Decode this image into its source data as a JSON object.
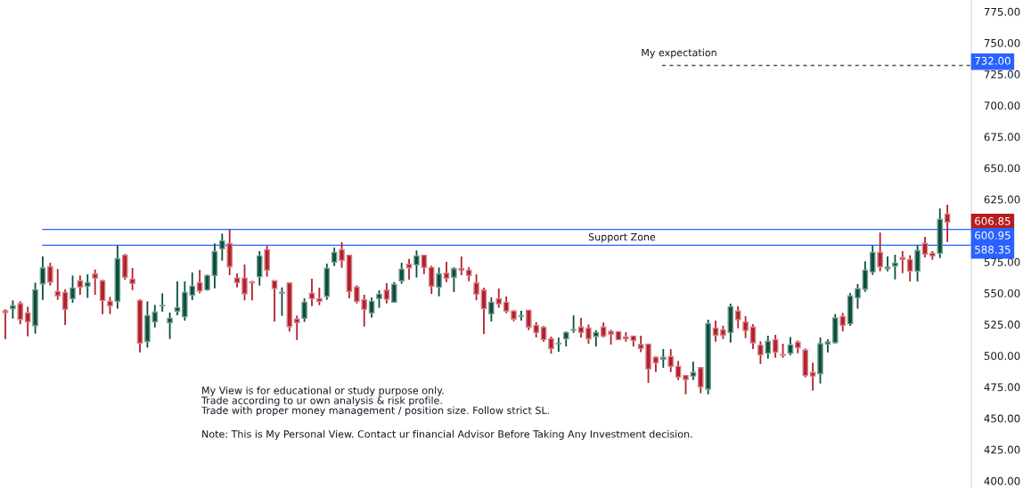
{
  "chart_data": {
    "type": "candlestick",
    "categories": [
      null,
      null,
      null,
      null,
      null,
      null,
      null,
      null,
      null,
      null,
      null,
      null,
      null,
      null,
      null,
      null,
      null,
      null,
      null,
      null,
      null,
      null,
      null,
      null,
      null,
      null,
      null,
      null,
      null,
      null,
      null,
      null,
      null,
      null,
      null,
      null,
      null,
      null,
      null,
      null,
      null,
      null,
      null,
      null,
      null,
      null,
      null,
      null,
      null,
      null,
      null,
      null,
      null,
      null,
      null,
      null,
      null,
      null,
      null,
      null,
      null,
      null,
      null,
      null,
      null,
      null,
      null,
      null,
      null,
      null,
      null,
      null,
      null,
      null,
      null,
      null,
      null,
      null,
      null,
      null,
      null,
      null,
      null,
      null,
      null,
      null,
      null,
      null,
      null,
      null,
      null,
      null,
      null,
      null,
      null,
      null,
      null,
      null,
      null,
      null,
      null,
      null,
      null,
      null,
      null,
      null,
      null,
      null,
      null,
      null,
      null,
      null,
      null,
      null,
      null,
      null,
      null,
      null,
      null,
      null,
      null,
      null,
      null,
      null,
      null,
      null,
      null
    ],
    "ohlc": [
      [
        535.9,
        537.1,
        513.4,
        534.5
      ],
      [
        537.6,
        544.2,
        529.7,
        539.9
      ],
      [
        541.6,
        543.5,
        525.2,
        529.0
      ],
      [
        534.2,
        539.2,
        515.5,
        527.1
      ],
      [
        524.0,
        558.4,
        517.6,
        552.7
      ],
      [
        557.5,
        579.3,
        544.7,
        570.1
      ],
      [
        571.2,
        574.3,
        556.1,
        558.9
      ],
      [
        551.3,
        569.3,
        544.7,
        547.8
      ],
      [
        550.6,
        553.0,
        524.5,
        537.1
      ],
      [
        545.6,
        564.1,
        542.3,
        554.2
      ],
      [
        559.9,
        564.1,
        548.7,
        554.9
      ],
      [
        555.6,
        565.1,
        546.3,
        558.4
      ],
      [
        565.5,
        568.9,
        548.7,
        562.0
      ],
      [
        559.9,
        560.8,
        533.3,
        544.2
      ],
      [
        543.5,
        547.0,
        533.3,
        539.9
      ],
      [
        543.5,
        588.1,
        537.6,
        577.6
      ],
      [
        580.3,
        581.4,
        560.6,
        562.7
      ],
      [
        561.3,
        570.1,
        552.5,
        557.7
      ],
      [
        544.2,
        545.2,
        502.7,
        510.0
      ],
      [
        511.4,
        543.5,
        506.5,
        532.1
      ],
      [
        527.1,
        540.6,
        522.6,
        534.9
      ],
      [
        539.9,
        549.9,
        535.2,
        540.2
      ],
      [
        526.4,
        534.5,
        513.4,
        530.0
      ],
      [
        535.6,
        559.4,
        532.3,
        538.5
      ],
      [
        531.2,
        559.4,
        528.1,
        550.6
      ],
      [
        548.5,
        566.5,
        544.4,
        555.6
      ],
      [
        558.4,
        568.6,
        549.9,
        551.8
      ],
      [
        552.7,
        564.8,
        552.0,
        564.1
      ],
      [
        564.1,
        589.7,
        553.9,
        583.3
      ],
      [
        585.5,
        597.6,
        576.0,
        591.9
      ],
      [
        589.7,
        601.1,
        564.4,
        571.2
      ],
      [
        562.2,
        565.8,
        554.6,
        558.4
      ],
      [
        562.2,
        572.9,
        544.2,
        549.4
      ],
      [
        559.1,
        559.9,
        544.2,
        558.2
      ],
      [
        563.2,
        583.6,
        556.1,
        579.8
      ],
      [
        584.8,
        587.8,
        563.2,
        568.4
      ],
      [
        559.9,
        560.1,
        527.3,
        553.7
      ],
      [
        550.0,
        554.6,
        531.9,
        550.6
      ],
      [
        558.2,
        558.4,
        519.3,
        523.3
      ],
      [
        529.3,
        532.1,
        512.6,
        526.4
      ],
      [
        530.0,
        545.9,
        527.1,
        542.8
      ],
      [
        549.9,
        561.5,
        539.7,
        545.6
      ],
      [
        545.6,
        554.4,
        540.4,
        543.5
      ],
      [
        547.5,
        573.6,
        544.7,
        569.8
      ],
      [
        574.8,
        586.4,
        571.7,
        582.6
      ],
      [
        584.8,
        590.7,
        570.3,
        576.2
      ],
      [
        580.3,
        580.7,
        545.9,
        551.3
      ],
      [
        554.9,
        556.3,
        541.8,
        543.5
      ],
      [
        544.7,
        548.7,
        523.3,
        537.1
      ],
      [
        534.2,
        546.6,
        530.5,
        543.5
      ],
      [
        545.6,
        552.3,
        538.3,
        549.2
      ],
      [
        552.5,
        558.0,
        541.8,
        545.2
      ],
      [
        542.8,
        558.9,
        542.8,
        557.0
      ],
      [
        559.9,
        574.3,
        557.5,
        569.1
      ],
      [
        573.1,
        577.4,
        560.6,
        570.3
      ],
      [
        572.7,
        584.1,
        562.5,
        579.8
      ],
      [
        580.3,
        580.7,
        565.3,
        570.5
      ],
      [
        570.5,
        571.9,
        549.4,
        555.6
      ],
      [
        554.9,
        570.5,
        547.5,
        565.5
      ],
      [
        566.0,
        575.0,
        558.9,
        562.0
      ],
      [
        562.7,
        570.8,
        550.9,
        569.6
      ],
      [
        569.8,
        579.3,
        564.4,
        568.4
      ],
      [
        568.4,
        570.8,
        559.6,
        564.1
      ],
      [
        558.2,
        565.1,
        544.4,
        549.2
      ],
      [
        552.5,
        554.4,
        517.4,
        537.6
      ],
      [
        533.5,
        546.6,
        527.4,
        542.8
      ],
      [
        545.6,
        553.7,
        538.3,
        541.4
      ],
      [
        542.8,
        547.5,
        534.0,
        535.7
      ],
      [
        535.7,
        536.4,
        527.6,
        529.3
      ],
      [
        531.6,
        535.9,
        528.1,
        531.9
      ],
      [
        536.4,
        536.4,
        520.5,
        522.9
      ],
      [
        524.3,
        526.9,
        514.6,
        518.6
      ],
      [
        522.8,
        523.8,
        511.2,
        512.9
      ],
      [
        513.6,
        515.3,
        501.7,
        505.8
      ],
      [
        509.5,
        514.5,
        503.2,
        509.9
      ],
      [
        513.6,
        519.5,
        507.4,
        518.6
      ],
      [
        520.5,
        532.3,
        518.3,
        520.9
      ],
      [
        522.9,
        530.2,
        514.6,
        518.6
      ],
      [
        522.1,
        525.0,
        509.6,
        513.6
      ],
      [
        515.5,
        520.5,
        507.4,
        518.6
      ],
      [
        522.9,
        526.6,
        514.6,
        515.7
      ],
      [
        519.5,
        520.7,
        508.9,
        517.2
      ],
      [
        519.3,
        519.3,
        512.9,
        512.9
      ],
      [
        515.0,
        518.8,
        511.2,
        513.6
      ],
      [
        515.7,
        515.7,
        507.4,
        512.2
      ],
      [
        509.1,
        516.0,
        502.9,
        505.8
      ],
      [
        509.3,
        509.3,
        478.3,
        489.4
      ],
      [
        498.7,
        499.6,
        487.0,
        494.4
      ],
      [
        497.2,
        505.3,
        490.3,
        498.7
      ],
      [
        499.4,
        505.3,
        487.0,
        491.5
      ],
      [
        491.5,
        495.8,
        480.6,
        483.0
      ],
      [
        484.2,
        484.2,
        469.2,
        480.9
      ],
      [
        483.7,
        495.3,
        480.6,
        486.6
      ],
      [
        490.6,
        490.6,
        470.0,
        475.2
      ],
      [
        473.3,
        528.8,
        469.2,
        525.7
      ],
      [
        522.1,
        528.1,
        511.2,
        516.4
      ],
      [
        520.7,
        524.0,
        513.4,
        516.4
      ],
      [
        518.6,
        541.6,
        510.5,
        539.2
      ],
      [
        535.7,
        539.5,
        521.9,
        528.8
      ],
      [
        526.9,
        531.6,
        514.1,
        520.2
      ],
      [
        522.9,
        525.2,
        505.3,
        510.3
      ],
      [
        508.4,
        511.5,
        493.4,
        500.8
      ],
      [
        502.0,
        516.0,
        497.7,
        511.5
      ],
      [
        512.9,
        516.7,
        498.4,
        502.9
      ],
      [
        501.0,
        509.6,
        498.4,
        500.3
      ],
      [
        502.0,
        515.0,
        500.3,
        508.6
      ],
      [
        510.8,
        512.2,
        502.0,
        506.5
      ],
      [
        504.4,
        505.8,
        482.8,
        484.2
      ],
      [
        486.6,
        494.4,
        472.1,
        483.7
      ],
      [
        485.6,
        514.6,
        477.8,
        509.6
      ],
      [
        509.3,
        513.1,
        502.7,
        511.0
      ],
      [
        510.5,
        533.3,
        509.8,
        530.2
      ],
      [
        531.4,
        534.2,
        519.5,
        524.3
      ],
      [
        525.5,
        550.1,
        523.8,
        547.8
      ],
      [
        546.3,
        557.3,
        537.6,
        553.5
      ],
      [
        553.2,
        575.5,
        551.1,
        568.4
      ],
      [
        567.0,
        587.9,
        564.6,
        582.6
      ],
      [
        582.6,
        598.5,
        567.5,
        571.2
      ],
      [
        569.6,
        579.3,
        567.5,
        570.8
      ],
      [
        571.7,
        580.7,
        561.0,
        574.1
      ],
      [
        578.4,
        583.6,
        566.0,
        576.9
      ],
      [
        576.9,
        580.3,
        559.4,
        567.7
      ],
      [
        567.7,
        588.6,
        559.4,
        584.1
      ],
      [
        589.8,
        595.0,
        578.6,
        581.2
      ],
      [
        581.9,
        583.6,
        576.7,
        579.8
      ],
      [
        581.9,
        617.7,
        578.1,
        609.0
      ],
      [
        613.2,
        620.6,
        590.9,
        606.85
      ]
    ],
    "colors": [
      "#b2202a",
      "#0a4f3e",
      "#b2202a",
      "#b2202a",
      "#0a4f3e",
      "#0a4f3e",
      "#b2202a",
      "#b2202a",
      "#b2202a",
      "#0a4f3e",
      "#b2202a",
      "#0a4f3e",
      "#b2202a",
      "#b2202a",
      "#b2202a",
      "#0a4f3e",
      "#b2202a",
      "#b2202a",
      "#b2202a",
      "#0a4f3e",
      "#0a4f3e",
      "#0a4f3e",
      "#0a4f3e",
      "#0a4f3e",
      "#0a4f3e",
      "#0a4f3e",
      "#b2202a",
      "#0a4f3e",
      "#0a4f3e",
      "#0a4f3e",
      "#b2202a",
      "#b2202a",
      "#b2202a",
      "#b2202a",
      "#0a4f3e",
      "#b2202a",
      "#b2202a",
      "#0a4f3e",
      "#b2202a",
      "#b2202a",
      "#0a4f3e",
      "#b2202a",
      "#b2202a",
      "#0a4f3e",
      "#0a4f3e",
      "#b2202a",
      "#b2202a",
      "#b2202a",
      "#b2202a",
      "#0a4f3e",
      "#0a4f3e",
      "#b2202a",
      "#0a4f3e",
      "#0a4f3e",
      "#b2202a",
      "#0a4f3e",
      "#b2202a",
      "#b2202a",
      "#0a4f3e",
      "#b2202a",
      "#0a4f3e",
      "#b2202a",
      "#b2202a",
      "#b2202a",
      "#b2202a",
      "#0a4f3e",
      "#b2202a",
      "#b2202a",
      "#b2202a",
      "#0a4f3e",
      "#b2202a",
      "#b2202a",
      "#b2202a",
      "#b2202a",
      "#0a4f3e",
      "#0a4f3e",
      "#0a4f3e",
      "#b2202a",
      "#b2202a",
      "#0a4f3e",
      "#b2202a",
      "#b2202a",
      "#b2202a",
      "#b2202a",
      "#b2202a",
      "#b2202a",
      "#b2202a",
      "#b2202a",
      "#0a4f3e",
      "#b2202a",
      "#b2202a",
      "#b2202a",
      "#0a4f3e",
      "#b2202a",
      "#0a4f3e",
      "#b2202a",
      "#b2202a",
      "#0a4f3e",
      "#b2202a",
      "#b2202a",
      "#b2202a",
      "#b2202a",
      "#0a4f3e",
      "#b2202a",
      "#b2202a",
      "#0a4f3e",
      "#b2202a",
      "#b2202a",
      "#b2202a",
      "#0a4f3e",
      "#0a4f3e",
      "#0a4f3e",
      "#b2202a",
      "#0a4f3e",
      "#0a4f3e",
      "#0a4f3e",
      "#0a4f3e",
      "#b2202a",
      "#0a4f3e",
      "#0a4f3e",
      "#b2202a",
      "#b2202a",
      "#0a4f3e",
      "#b2202a",
      "#b2202a",
      "#0a4f3e",
      "#b2202a"
    ],
    "ylim": [
      394.3,
      784.3
    ],
    "yticks": [
      {
        "value": 400,
        "label": "400.00"
      },
      {
        "value": 425,
        "label": "425.00"
      },
      {
        "value": 450,
        "label": "450.00"
      },
      {
        "value": 475,
        "label": "475.00"
      },
      {
        "value": 500,
        "label": "500.00"
      },
      {
        "value": 525,
        "label": "525.00"
      },
      {
        "value": 550,
        "label": "550.00"
      },
      {
        "value": 575,
        "label": "575.00"
      },
      {
        "value": 625,
        "label": "625.00"
      },
      {
        "value": 650,
        "label": "650.00"
      },
      {
        "value": 675,
        "label": "675.00"
      },
      {
        "value": 700,
        "label": "700.00"
      },
      {
        "value": 725,
        "label": "725.00"
      },
      {
        "value": 750,
        "label": "750.00"
      },
      {
        "value": 775,
        "label": "775.00"
      }
    ],
    "tick_labels": "y",
    "grid": false,
    "ref_lines": [
      {
        "axis": "y",
        "value": 732,
        "label": "732.00",
        "color": "#555555",
        "line_style": "dashed"
      },
      {
        "axis": "y",
        "value": 600.95,
        "label": "600.95",
        "color": "#2962ff",
        "line_style": "solid"
      },
      {
        "axis": "y",
        "value": 588.35,
        "label": "588.35",
        "color": "#2962ff",
        "line_style": "solid"
      }
    ],
    "annotations": [
      "My expectation",
      "Support Zone",
      "606.85",
      "My View is for educational or study purpose only.\nTrade according to ur own analysis & risk profile.\nTrade with proper money management / position size. Follow strict SL.",
      "Note: This is My Personal View. Contact ur financial Advisor Before Taking Any Investment decision."
    ]
  }
}
